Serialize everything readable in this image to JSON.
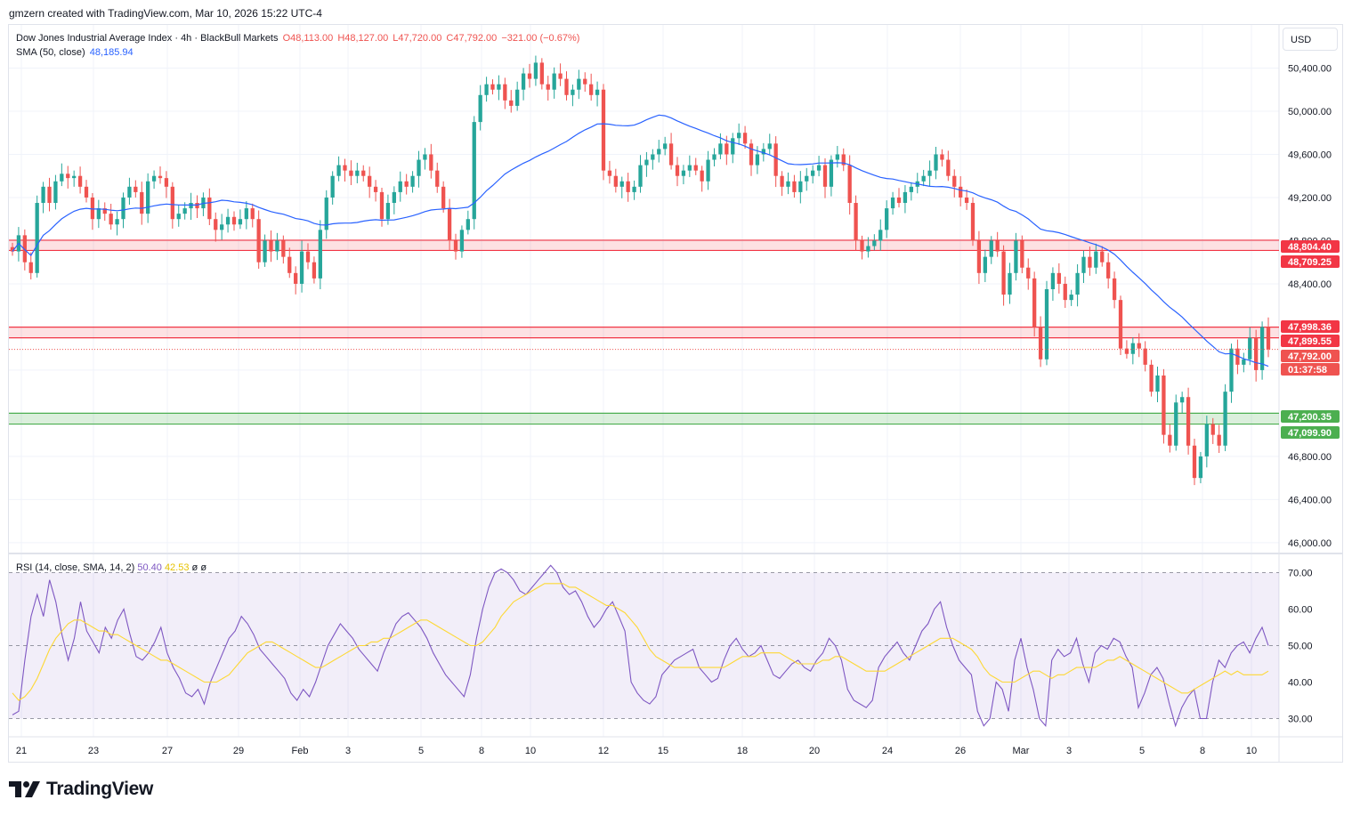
{
  "header": {
    "caption": "gmzern created with TradingView.com, Mar 10, 2026 15:22 UTC-4"
  },
  "legend": {
    "symbol": "Dow Jones Industrial Average Index · 4h · BlackBull Markets",
    "open": "O48,113.00",
    "high": "H48,127.00",
    "low": "L47,720.00",
    "close": "C47,792.00",
    "change": "−321.00 (−0.67%)",
    "sma_label": "SMA (50, close)",
    "sma_value": "48,185.94"
  },
  "rsi_legend": {
    "label": "RSI (14, close, SMA, 14, 2)",
    "rsi_value": "50.40",
    "sma_value": "42.53",
    "extra1": "ø",
    "extra2": "ø"
  },
  "currency": "USD",
  "brand": "TradingView",
  "colors": {
    "up": "#26a69a",
    "down": "#ef5350",
    "sma": "#2962ff",
    "rsi": "#7e57c2",
    "rsi_sma": "#fdd835",
    "resistance": "#f23645",
    "support": "#4caf50"
  },
  "chart_data": [
    {
      "type": "candlestick",
      "title": "Dow Jones Industrial Average Index · 4h · BlackBull Markets",
      "timeframe": "4h",
      "ylim": [
        45900,
        50800
      ],
      "y_ticks": [
        46000,
        46400,
        46800,
        47200,
        47600,
        48000,
        48400,
        48800,
        49200,
        49600,
        50000,
        50400
      ],
      "y_tick_labels": [
        "46,000.00",
        "46,400.00",
        "46,800.00",
        "47,200.00",
        "47,600.00",
        "48,000.00",
        "48,400.00",
        "48,800.00",
        "49,200.00",
        "49,600.00",
        "50,000.00",
        "50,400.00"
      ],
      "x_tick_labels": [
        "21",
        "23",
        "27",
        "29",
        "Feb",
        "3",
        "5",
        "8",
        "10",
        "12",
        "15",
        "18",
        "20",
        "24",
        "26",
        "Mar",
        "3",
        "5",
        "8",
        "10"
      ],
      "ohlc_close_path": [
        48700,
        48850,
        48600,
        48500,
        49150,
        49300,
        49150,
        49350,
        49420,
        49380,
        49400,
        49300,
        49200,
        49000,
        49100,
        49050,
        48950,
        49000,
        49200,
        49300,
        49250,
        49050,
        49350,
        49400,
        49380,
        49300,
        49000,
        49050,
        49100,
        49150,
        49100,
        49200,
        49000,
        48900,
        48950,
        49020,
        48950,
        49000,
        49100,
        49000,
        48600,
        48800,
        48700,
        48800,
        48650,
        48500,
        48400,
        48700,
        48600,
        48450,
        48900,
        49200,
        49400,
        49500,
        49450,
        49400,
        49450,
        49400,
        49300,
        49250,
        49000,
        49150,
        49250,
        49350,
        49300,
        49400,
        49550,
        49600,
        49450,
        49300,
        49100,
        48800,
        48700,
        48900,
        49000,
        49900,
        50150,
        50250,
        50200,
        50250,
        50100,
        50050,
        50200,
        50350,
        50300,
        50450,
        50250,
        50200,
        50350,
        50300,
        50150,
        50200,
        50300,
        50250,
        50150,
        50200,
        49450,
        49400,
        49300,
        49350,
        49250,
        49300,
        49500,
        49550,
        49600,
        49650,
        49700,
        49500,
        49400,
        49450,
        49500,
        49450,
        49350,
        49550,
        49600,
        49700,
        49600,
        49750,
        49800,
        49700,
        49500,
        49600,
        49650,
        49700,
        49400,
        49300,
        49350,
        49250,
        49350,
        49400,
        49450,
        49500,
        49300,
        49550,
        49600,
        49500,
        49150,
        48800,
        48700,
        48750,
        48800,
        48900,
        49100,
        49200,
        49150,
        49250,
        49300,
        49350,
        49400,
        49450,
        49600,
        49550,
        49400,
        49300,
        49200,
        49150,
        48800,
        48500,
        48650,
        48800,
        48700,
        48300,
        48500,
        48800,
        48550,
        48450,
        48000,
        47700,
        48350,
        48500,
        48400,
        48250,
        48300,
        48500,
        48650,
        48550,
        48700,
        48600,
        48450,
        48250,
        47800,
        47750,
        47850,
        47800,
        47650,
        47400,
        47550,
        47000,
        46900,
        47300,
        47350,
        46900,
        46600,
        46800,
        47100,
        47000,
        46900,
        47400,
        47800,
        47650,
        47700,
        47900,
        47600,
        48000,
        47792
      ],
      "sma_50_last": 48185.94,
      "levels": {
        "resistance_zone_1": [
          48709.25,
          48804.4
        ],
        "resistance_zone_2": [
          47899.55,
          47998.36
        ],
        "support_zone": [
          47099.9,
          47200.35
        ]
      },
      "price_labels": [
        "48,804.40",
        "48,709.25",
        "47,998.36",
        "47,899.55",
        "47,792.00",
        "01:37:58",
        "47,200.35",
        "47,099.90"
      ],
      "last_price": 47792.0,
      "countdown": "01:37:58"
    },
    {
      "type": "line",
      "title": "RSI (14, close, SMA, 14, 2)",
      "ylim": [
        25,
        75
      ],
      "y_ticks": [
        30,
        40,
        50,
        60,
        70
      ],
      "y_tick_labels": [
        "30.00",
        "40.00",
        "50.00",
        "60.00",
        "70.00"
      ],
      "band": [
        30,
        70
      ],
      "midline": 50,
      "series": [
        {
          "name": "RSI",
          "last": 50.4,
          "values": [
            31,
            32,
            46,
            58,
            64,
            58,
            68,
            62,
            53,
            46,
            52,
            62,
            54,
            51,
            48,
            55,
            52,
            57,
            60,
            53,
            47,
            46,
            48,
            51,
            55,
            48,
            44,
            41,
            37,
            36,
            38,
            34,
            40,
            44,
            48,
            52,
            54,
            58,
            56,
            53,
            49,
            47,
            45,
            43,
            41,
            37,
            35,
            38,
            36,
            40,
            45,
            50,
            53,
            56,
            54,
            52,
            49,
            47,
            45,
            43,
            48,
            52,
            56,
            58,
            59,
            57,
            55,
            52,
            48,
            45,
            42,
            40,
            38,
            36,
            42,
            52,
            60,
            66,
            70,
            71,
            70,
            68,
            65,
            64,
            66,
            68,
            70,
            72,
            70,
            66,
            64,
            65,
            62,
            58,
            55,
            57,
            60,
            62,
            58,
            54,
            40,
            37,
            35,
            34,
            36,
            42,
            44,
            46,
            47,
            48,
            49,
            44,
            42,
            40,
            41,
            46,
            50,
            52,
            49,
            47,
            48,
            50,
            46,
            42,
            41,
            43,
            45,
            46,
            44,
            43,
            46,
            48,
            52,
            50,
            46,
            38,
            35,
            34,
            33,
            35,
            44,
            47,
            49,
            51,
            48,
            46,
            50,
            54,
            56,
            60,
            62,
            55,
            50,
            46,
            44,
            42,
            32,
            28,
            30,
            40,
            38,
            32,
            46,
            52,
            44,
            38,
            30,
            28,
            46,
            49,
            47,
            48,
            52,
            45,
            40,
            48,
            50,
            49,
            52,
            51,
            47,
            44,
            33,
            37,
            42,
            44,
            41,
            34,
            28,
            33,
            36,
            38,
            30,
            30,
            40,
            46,
            44,
            48,
            50,
            51,
            48,
            52,
            55,
            50
          ]
        },
        {
          "name": "RSI SMA",
          "last": 42.53,
          "values": [
            37,
            35,
            36,
            38,
            41,
            45,
            49,
            52,
            54,
            56,
            57,
            57,
            56,
            55,
            54,
            54,
            53,
            53,
            52,
            51,
            50,
            49,
            48,
            47,
            46,
            46,
            45,
            44,
            43,
            42,
            41,
            40,
            40,
            40,
            41,
            42,
            44,
            46,
            48,
            49,
            50,
            51,
            51,
            50,
            49,
            48,
            47,
            46,
            45,
            44,
            44,
            45,
            46,
            47,
            48,
            49,
            50,
            50,
            51,
            51,
            52,
            52,
            53,
            54,
            55,
            56,
            57,
            57,
            56,
            55,
            54,
            53,
            52,
            51,
            50,
            50,
            51,
            53,
            55,
            58,
            60,
            62,
            63,
            64,
            65,
            66,
            67,
            67,
            67,
            67,
            66,
            66,
            65,
            64,
            63,
            62,
            61,
            61,
            60,
            59,
            57,
            55,
            52,
            49,
            47,
            46,
            45,
            44,
            44,
            44,
            44,
            44,
            44,
            44,
            44,
            44,
            45,
            46,
            47,
            47,
            47,
            48,
            48,
            48,
            48,
            47,
            46,
            45,
            45,
            45,
            45,
            46,
            46,
            47,
            47,
            46,
            45,
            44,
            43,
            43,
            43,
            43,
            44,
            45,
            46,
            47,
            48,
            49,
            50,
            51,
            52,
            52,
            52,
            51,
            50,
            49,
            47,
            44,
            42,
            41,
            40,
            40,
            40,
            41,
            42,
            43,
            43,
            42,
            41,
            42,
            42,
            43,
            44,
            44,
            44,
            44,
            45,
            46,
            46,
            47,
            46,
            45,
            44,
            43,
            42,
            41,
            40,
            39,
            38,
            37,
            37,
            38,
            39,
            40,
            41,
            42,
            43,
            42,
            43,
            42,
            42,
            42,
            42,
            43
          ]
        }
      ]
    }
  ]
}
